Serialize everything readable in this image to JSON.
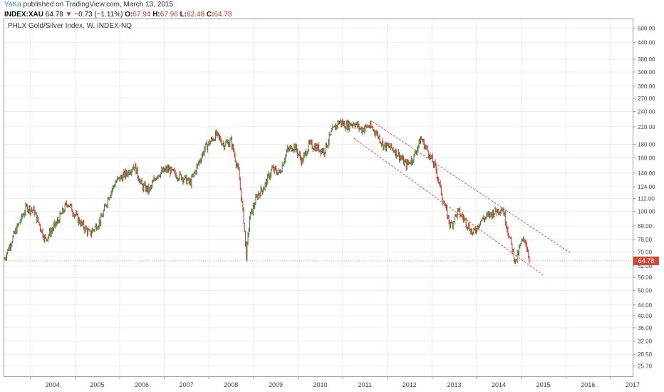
{
  "header": {
    "user": "YaKa",
    "published": "published on TradingView.com, March 13, 2015"
  },
  "ticker": {
    "symbol": "INDEX:XAU",
    "last": "64.78",
    "arrow": "▼",
    "change": "−0.73 (−1.11%)",
    "open_label": "O:",
    "open": "67.94",
    "high_label": "H:",
    "high": "67.96",
    "low_label": "L:",
    "low": "62.48",
    "close_label": "C:",
    "close": "64.78"
  },
  "chart_data": {
    "type": "line",
    "title": "PHLX Gold/Silver Index, W, INDEX-NQ",
    "y_scale": "log",
    "y_ticks": [
      "500.00",
      "440.00",
      "380.00",
      "340.00",
      "300.00",
      "270.00",
      "240.00",
      "210.00",
      "180.00",
      "160.00",
      "140.00",
      "124.00",
      "112.00",
      "100.00",
      "88.00",
      "78.00",
      "70.00",
      "62.00",
      "56.00",
      "50.00",
      "44.00",
      "40.00",
      "36.00",
      "32.00",
      "28.50",
      "25.70"
    ],
    "x_ticks": [
      "2004",
      "2005",
      "2006",
      "2007",
      "2008",
      "2009",
      "2010",
      "2011",
      "2012",
      "2013",
      "2014",
      "2015",
      "2016",
      "2017"
    ],
    "ylim": [
      23.5,
      540
    ],
    "xlim": [
      "2003-06-01",
      "2017-07-01"
    ],
    "last_value": "64.78",
    "colors": {
      "up": "#3a7d34",
      "down": "#c0392b",
      "channel": "#e8524a",
      "grid": "#ececec",
      "badge": "#d14836"
    },
    "series": [
      {
        "values": [
          [
            "2003-06-01",
            66
          ],
          [
            "2003-09-01",
            84
          ],
          [
            "2003-12-01",
            104
          ],
          [
            "2004-02-01",
            100
          ],
          [
            "2004-05-01",
            78
          ],
          [
            "2004-08-01",
            90
          ],
          [
            "2004-11-01",
            108
          ],
          [
            "2005-02-01",
            92
          ],
          [
            "2005-05-01",
            82
          ],
          [
            "2005-08-01",
            93
          ],
          [
            "2005-10-01",
            114
          ],
          [
            "2005-12-01",
            130
          ],
          [
            "2006-03-01",
            140
          ],
          [
            "2006-05-01",
            150
          ],
          [
            "2006-07-01",
            125
          ],
          [
            "2006-09-01",
            120
          ],
          [
            "2006-11-01",
            138
          ],
          [
            "2007-02-01",
            145
          ],
          [
            "2007-04-01",
            138
          ],
          [
            "2007-06-01",
            135
          ],
          [
            "2007-08-01",
            128
          ],
          [
            "2007-10-01",
            150
          ],
          [
            "2007-12-01",
            175
          ],
          [
            "2008-03-01",
            196
          ],
          [
            "2008-05-01",
            180
          ],
          [
            "2008-07-01",
            185
          ],
          [
            "2008-09-01",
            140
          ],
          [
            "2008-10-15",
            90
          ],
          [
            "2008-11-01",
            67
          ],
          [
            "2008-12-01",
            95
          ],
          [
            "2009-02-01",
            115
          ],
          [
            "2009-04-01",
            125
          ],
          [
            "2009-06-01",
            145
          ],
          [
            "2009-08-01",
            140
          ],
          [
            "2009-10-01",
            170
          ],
          [
            "2009-12-01",
            178
          ],
          [
            "2010-02-01",
            155
          ],
          [
            "2010-04-01",
            180
          ],
          [
            "2010-06-01",
            175
          ],
          [
            "2010-08-01",
            170
          ],
          [
            "2010-10-01",
            200
          ],
          [
            "2010-12-01",
            220
          ],
          [
            "2011-02-01",
            212
          ],
          [
            "2011-04-01",
            218
          ],
          [
            "2011-06-01",
            205
          ],
          [
            "2011-08-01",
            212
          ],
          [
            "2011-10-01",
            200
          ],
          [
            "2011-12-01",
            178
          ],
          [
            "2012-02-01",
            175
          ],
          [
            "2012-04-01",
            165
          ],
          [
            "2012-06-01",
            150
          ],
          [
            "2012-08-01",
            160
          ],
          [
            "2012-10-01",
            190
          ],
          [
            "2012-12-01",
            168
          ],
          [
            "2013-02-01",
            145
          ],
          [
            "2013-04-01",
            110
          ],
          [
            "2013-06-01",
            88
          ],
          [
            "2013-08-01",
            100
          ],
          [
            "2013-10-01",
            92
          ],
          [
            "2013-12-01",
            82
          ],
          [
            "2014-02-01",
            92
          ],
          [
            "2014-04-01",
            96
          ],
          [
            "2014-06-01",
            100
          ],
          [
            "2014-08-01",
            103
          ],
          [
            "2014-10-01",
            78
          ],
          [
            "2014-11-15",
            64
          ],
          [
            "2015-01-01",
            76
          ],
          [
            "2015-02-01",
            78
          ],
          [
            "2015-03-13",
            64.78
          ]
        ]
      }
    ],
    "channel": [
      {
        "x": [
          "2011-09-01",
          "2016-02-15"
        ],
        "y": [
          220,
          69
        ]
      },
      {
        "x": [
          "2011-04-01",
          "2015-07-01"
        ],
        "y": [
          190,
          57
        ]
      }
    ]
  }
}
